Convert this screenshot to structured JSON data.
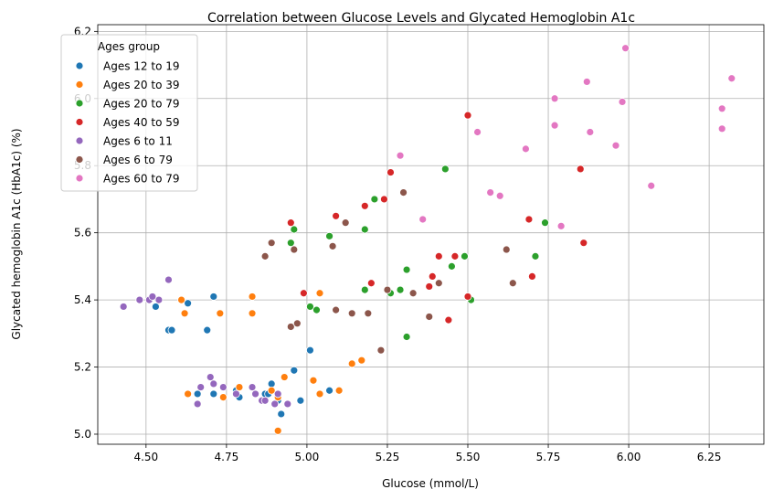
{
  "chart_data": {
    "type": "scatter",
    "title": "Correlation between Glucose Levels and Glycated Hemoglobin A1c",
    "xlabel": "Glucose (mmol/L)",
    "ylabel": "Glycated hemoglobin A1c (HbA1c) (%)",
    "xlim": [
      4.35,
      6.42
    ],
    "ylim": [
      4.97,
      6.22
    ],
    "xticks": [
      4.5,
      4.75,
      5.0,
      5.25,
      5.5,
      5.75,
      6.0,
      6.25
    ],
    "xtick_labels": [
      "4.50",
      "4.75",
      "5.00",
      "5.25",
      "5.50",
      "5.75",
      "6.00",
      "6.25"
    ],
    "yticks": [
      5.0,
      5.2,
      5.4,
      5.6,
      5.8,
      6.0,
      6.2
    ],
    "ytick_labels": [
      "5.0",
      "5.2",
      "5.4",
      "5.6",
      "5.8",
      "6.0",
      "6.2"
    ],
    "grid": true,
    "legend_title": "Ages group",
    "legend_position": "top-left",
    "series": [
      {
        "name": "Ages 12 to 19",
        "color": "#1f77b4",
        "points": [
          [
            4.53,
            5.38
          ],
          [
            4.57,
            5.31
          ],
          [
            4.58,
            5.31
          ],
          [
            4.63,
            5.39
          ],
          [
            4.69,
            5.31
          ],
          [
            4.71,
            5.41
          ],
          [
            4.66,
            5.12
          ],
          [
            4.71,
            5.12
          ],
          [
            4.78,
            5.13
          ],
          [
            4.79,
            5.11
          ],
          [
            4.87,
            5.12
          ],
          [
            4.88,
            5.12
          ],
          [
            4.89,
            5.15
          ],
          [
            4.91,
            5.1
          ],
          [
            4.92,
            5.06
          ],
          [
            4.96,
            5.19
          ],
          [
            4.98,
            5.1
          ],
          [
            5.01,
            5.25
          ],
          [
            5.07,
            5.13
          ]
        ]
      },
      {
        "name": "Ages 20 to 39",
        "color": "#ff7f0e",
        "points": [
          [
            4.61,
            5.4
          ],
          [
            4.62,
            5.36
          ],
          [
            4.63,
            5.12
          ],
          [
            4.73,
            5.36
          ],
          [
            4.74,
            5.11
          ],
          [
            4.79,
            5.14
          ],
          [
            4.83,
            5.41
          ],
          [
            4.83,
            5.36
          ],
          [
            4.89,
            5.13
          ],
          [
            4.91,
            5.11
          ],
          [
            4.91,
            5.01
          ],
          [
            4.93,
            5.17
          ],
          [
            5.02,
            5.16
          ],
          [
            5.04,
            5.12
          ],
          [
            5.04,
            5.42
          ],
          [
            5.1,
            5.13
          ],
          [
            5.14,
            5.21
          ],
          [
            5.17,
            5.22
          ]
        ]
      },
      {
        "name": "Ages 20 to 79",
        "color": "#2ca02c",
        "points": [
          [
            4.95,
            5.57
          ],
          [
            4.96,
            5.61
          ],
          [
            5.01,
            5.38
          ],
          [
            5.03,
            5.37
          ],
          [
            5.07,
            5.59
          ],
          [
            5.18,
            5.61
          ],
          [
            5.18,
            5.43
          ],
          [
            5.21,
            5.7
          ],
          [
            5.26,
            5.42
          ],
          [
            5.29,
            5.43
          ],
          [
            5.31,
            5.49
          ],
          [
            5.31,
            5.29
          ],
          [
            5.43,
            5.79
          ],
          [
            5.45,
            5.5
          ],
          [
            5.49,
            5.53
          ],
          [
            5.51,
            5.4
          ],
          [
            5.71,
            5.53
          ],
          [
            5.74,
            5.63
          ]
        ]
      },
      {
        "name": "Ages 40 to 59",
        "color": "#d62728",
        "points": [
          [
            4.95,
            5.63
          ],
          [
            4.99,
            5.42
          ],
          [
            5.09,
            5.65
          ],
          [
            5.18,
            5.68
          ],
          [
            5.2,
            5.45
          ],
          [
            5.24,
            5.7
          ],
          [
            5.26,
            5.78
          ],
          [
            5.38,
            5.44
          ],
          [
            5.39,
            5.47
          ],
          [
            5.41,
            5.53
          ],
          [
            5.44,
            5.34
          ],
          [
            5.46,
            5.53
          ],
          [
            5.5,
            5.41
          ],
          [
            5.5,
            5.95
          ],
          [
            5.69,
            5.64
          ],
          [
            5.7,
            5.47
          ],
          [
            5.85,
            5.79
          ],
          [
            5.86,
            5.57
          ]
        ]
      },
      {
        "name": "Ages 6 to 11",
        "color": "#9467bd",
        "points": [
          [
            4.43,
            5.38
          ],
          [
            4.48,
            5.4
          ],
          [
            4.51,
            5.4
          ],
          [
            4.52,
            5.41
          ],
          [
            4.54,
            5.4
          ],
          [
            4.57,
            5.46
          ],
          [
            4.66,
            5.09
          ],
          [
            4.67,
            5.14
          ],
          [
            4.7,
            5.17
          ],
          [
            4.71,
            5.15
          ],
          [
            4.74,
            5.14
          ],
          [
            4.78,
            5.12
          ],
          [
            4.83,
            5.14
          ],
          [
            4.84,
            5.12
          ],
          [
            4.86,
            5.1
          ],
          [
            4.87,
            5.1
          ],
          [
            4.9,
            5.09
          ],
          [
            4.91,
            5.12
          ],
          [
            4.94,
            5.09
          ]
        ]
      },
      {
        "name": "Ages 6 to 79",
        "color": "#8c564b",
        "points": [
          [
            4.87,
            5.53
          ],
          [
            4.89,
            5.57
          ],
          [
            4.95,
            5.32
          ],
          [
            4.96,
            5.55
          ],
          [
            4.97,
            5.33
          ],
          [
            5.08,
            5.56
          ],
          [
            5.09,
            5.37
          ],
          [
            5.12,
            5.63
          ],
          [
            5.14,
            5.36
          ],
          [
            5.19,
            5.36
          ],
          [
            5.23,
            5.25
          ],
          [
            5.25,
            5.43
          ],
          [
            5.3,
            5.72
          ],
          [
            5.33,
            5.42
          ],
          [
            5.38,
            5.35
          ],
          [
            5.41,
            5.45
          ],
          [
            5.62,
            5.55
          ],
          [
            5.64,
            5.45
          ]
        ]
      },
      {
        "name": "Ages 60 to 79",
        "color": "#e377c2",
        "points": [
          [
            5.29,
            5.83
          ],
          [
            5.36,
            5.64
          ],
          [
            5.53,
            5.9
          ],
          [
            5.57,
            5.72
          ],
          [
            5.6,
            5.71
          ],
          [
            5.68,
            5.85
          ],
          [
            5.77,
            6.0
          ],
          [
            5.77,
            5.92
          ],
          [
            5.79,
            5.62
          ],
          [
            5.87,
            6.05
          ],
          [
            5.88,
            5.9
          ],
          [
            5.96,
            5.86
          ],
          [
            5.98,
            5.99
          ],
          [
            5.99,
            6.15
          ],
          [
            6.07,
            5.74
          ],
          [
            6.29,
            5.91
          ],
          [
            6.29,
            5.97
          ],
          [
            6.32,
            6.06
          ]
        ]
      }
    ]
  }
}
